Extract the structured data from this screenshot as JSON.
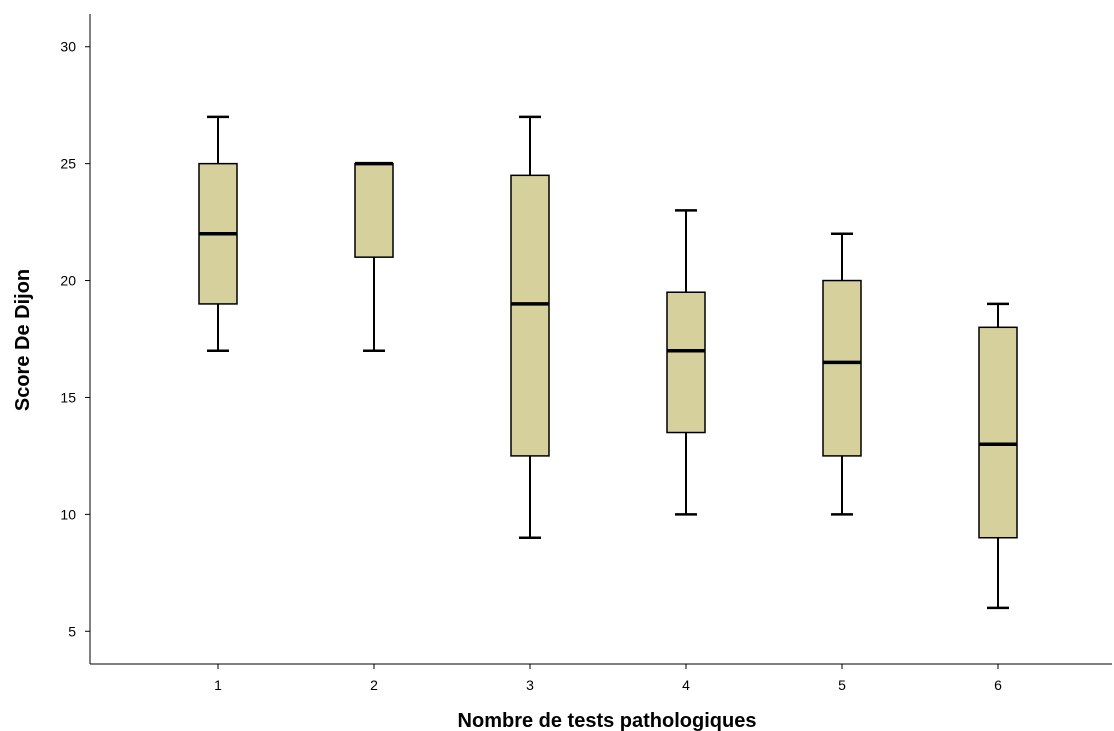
{
  "chart_data": {
    "type": "boxplot",
    "xlabel": "Nombre de tests pathologiques",
    "ylabel": "Score De Dijon",
    "ylim": [
      3.6,
      31.4
    ],
    "yticks": [
      5,
      10,
      15,
      20,
      25,
      30
    ],
    "categories": [
      "1",
      "2",
      "3",
      "4",
      "5",
      "6"
    ],
    "boxes": [
      {
        "category": "1",
        "min": 17,
        "q1": 19,
        "median": 22,
        "q3": 25,
        "max": 27
      },
      {
        "category": "2",
        "min": 17,
        "q1": 21,
        "median": 25,
        "q3": 25,
        "max": 25
      },
      {
        "category": "3",
        "min": 9,
        "q1": 12.5,
        "median": 19,
        "q3": 24.5,
        "max": 27
      },
      {
        "category": "4",
        "min": 10,
        "q1": 13.5,
        "median": 17,
        "q3": 19.5,
        "max": 23
      },
      {
        "category": "5",
        "min": 10,
        "q1": 12.5,
        "median": 16.5,
        "q3": 20,
        "max": 22
      },
      {
        "category": "6",
        "min": 6,
        "q1": 9,
        "median": 13,
        "q3": 18,
        "max": 19
      }
    ],
    "box_color": "#d6d09c",
    "grid": false,
    "legend": "none"
  }
}
